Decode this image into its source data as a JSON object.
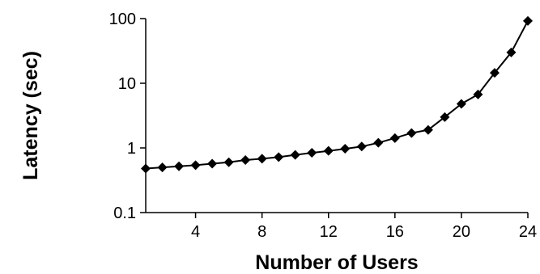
{
  "chart_data": {
    "type": "line",
    "title": "",
    "xlabel": "Number of Users",
    "ylabel": "Latency (sec)",
    "xscale": "linear",
    "yscale": "log",
    "xlim": [
      1,
      24
    ],
    "ylim": [
      0.1,
      100
    ],
    "xticks": [
      4,
      8,
      12,
      16,
      20,
      24
    ],
    "xtick_labels": [
      "4",
      "8",
      "12",
      "16",
      "20",
      "24"
    ],
    "yticks": [
      0.1,
      1,
      10,
      100
    ],
    "ytick_labels": [
      "0.1",
      "1",
      "10",
      "100"
    ],
    "grid": false,
    "legend": "none",
    "marker": "diamond",
    "color": "#000000",
    "series": [
      {
        "x": [
          1,
          2,
          3,
          4,
          5,
          6,
          7,
          8,
          9,
          10,
          11,
          12,
          13,
          14,
          15,
          16,
          17,
          18,
          19,
          20,
          21,
          22,
          23,
          24
        ],
        "values": [
          0.48,
          0.5,
          0.52,
          0.54,
          0.57,
          0.6,
          0.65,
          0.68,
          0.72,
          0.78,
          0.84,
          0.9,
          0.97,
          1.05,
          1.2,
          1.42,
          1.7,
          1.9,
          3.0,
          4.8,
          6.7,
          14.5,
          30,
          92
        ]
      }
    ]
  }
}
